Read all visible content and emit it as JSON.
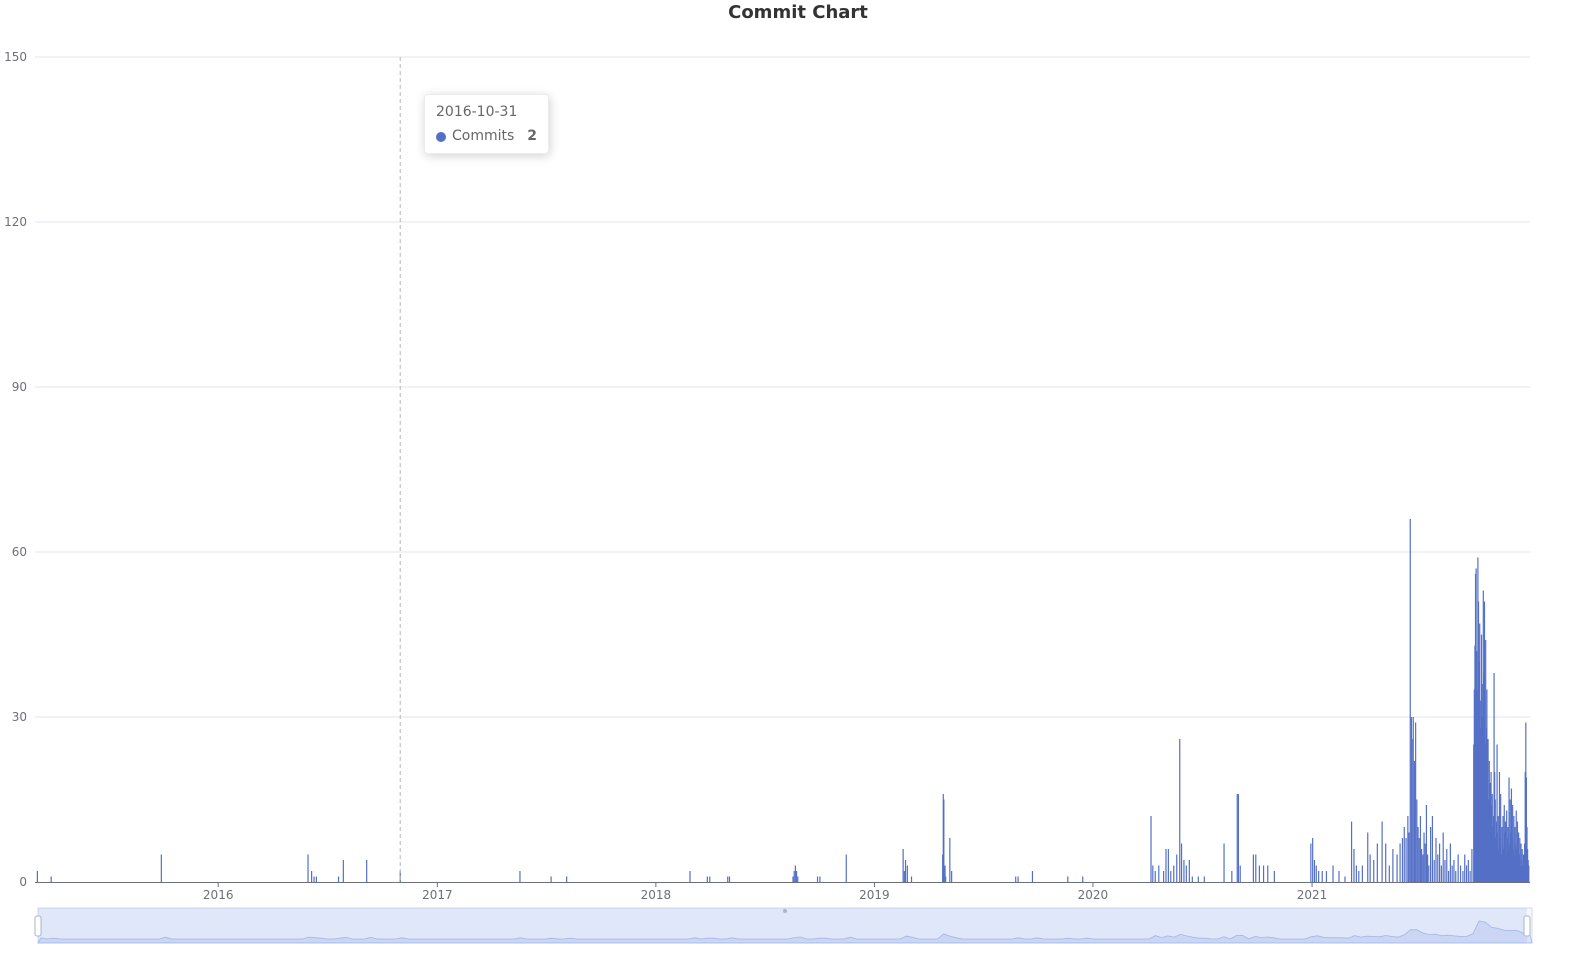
{
  "chart_data": {
    "type": "bar",
    "title": "Commit Chart",
    "xlabel": "",
    "ylabel": "",
    "ylim": [
      0,
      150
    ],
    "yticks": [
      0,
      30,
      60,
      90,
      120,
      150
    ],
    "xlim": [
      "2015-03-01",
      "2021-12-31"
    ],
    "xticks": [
      "2016",
      "2017",
      "2018",
      "2019",
      "2020",
      "2021"
    ],
    "grid": true,
    "color": "#5470c6",
    "series": [
      {
        "name": "Commits",
        "points": [
          [
            "2015-03-05",
            2
          ],
          [
            "2015-03-28",
            1
          ],
          [
            "2015-09-28",
            5
          ],
          [
            "2016-05-30",
            5
          ],
          [
            "2016-06-05",
            2
          ],
          [
            "2016-06-09",
            1
          ],
          [
            "2016-06-13",
            1
          ],
          [
            "2016-07-20",
            1
          ],
          [
            "2016-07-28",
            4
          ],
          [
            "2016-09-05",
            4
          ],
          [
            "2016-10-31",
            2
          ],
          [
            "2017-05-19",
            2
          ],
          [
            "2017-07-10",
            1
          ],
          [
            "2017-08-05",
            1
          ],
          [
            "2018-02-27",
            2
          ],
          [
            "2018-03-28",
            1
          ],
          [
            "2018-04-01",
            1
          ],
          [
            "2018-05-01",
            1
          ],
          [
            "2018-05-04",
            1
          ],
          [
            "2018-08-18",
            1
          ],
          [
            "2018-08-20",
            2
          ],
          [
            "2018-08-22",
            3
          ],
          [
            "2018-08-24",
            2
          ],
          [
            "2018-08-26",
            1
          ],
          [
            "2018-09-28",
            1
          ],
          [
            "2018-10-02",
            1
          ],
          [
            "2018-11-15",
            5
          ],
          [
            "2019-02-18",
            6
          ],
          [
            "2019-02-20",
            2
          ],
          [
            "2019-02-22",
            4
          ],
          [
            "2019-02-25",
            3
          ],
          [
            "2019-03-04",
            1
          ],
          [
            "2019-04-25",
            5
          ],
          [
            "2019-04-26",
            16
          ],
          [
            "2019-04-27",
            15
          ],
          [
            "2019-04-29",
            3
          ],
          [
            "2019-04-30",
            1
          ],
          [
            "2019-05-07",
            8
          ],
          [
            "2019-05-10",
            2
          ],
          [
            "2019-08-25",
            1
          ],
          [
            "2019-08-29",
            1
          ],
          [
            "2019-09-22",
            2
          ],
          [
            "2019-11-20",
            1
          ],
          [
            "2019-12-15",
            1
          ],
          [
            "2020-04-07",
            12
          ],
          [
            "2020-04-10",
            3
          ],
          [
            "2020-04-14",
            2
          ],
          [
            "2020-04-20",
            3
          ],
          [
            "2020-04-28",
            2
          ],
          [
            "2020-05-02",
            6
          ],
          [
            "2020-05-06",
            6
          ],
          [
            "2020-05-10",
            2
          ],
          [
            "2020-05-15",
            3
          ],
          [
            "2020-05-20",
            5
          ],
          [
            "2020-05-25",
            26
          ],
          [
            "2020-05-28",
            7
          ],
          [
            "2020-06-01",
            4
          ],
          [
            "2020-06-05",
            3
          ],
          [
            "2020-06-10",
            4
          ],
          [
            "2020-06-15",
            1
          ],
          [
            "2020-06-25",
            1
          ],
          [
            "2020-07-05",
            1
          ],
          [
            "2020-08-07",
            7
          ],
          [
            "2020-08-20",
            2
          ],
          [
            "2020-08-29",
            16
          ],
          [
            "2020-08-31",
            16
          ],
          [
            "2020-09-03",
            3
          ],
          [
            "2020-09-25",
            5
          ],
          [
            "2020-09-29",
            5
          ],
          [
            "2020-10-05",
            3
          ],
          [
            "2020-10-12",
            3
          ],
          [
            "2020-10-19",
            3
          ],
          [
            "2020-10-30",
            2
          ],
          [
            "2020-12-30",
            7
          ],
          [
            "2021-01-02",
            8
          ],
          [
            "2021-01-05",
            4
          ],
          [
            "2021-01-08",
            3
          ],
          [
            "2021-01-12",
            2
          ],
          [
            "2021-01-18",
            2
          ],
          [
            "2021-01-25",
            2
          ],
          [
            "2021-02-05",
            3
          ],
          [
            "2021-02-15",
            2
          ],
          [
            "2021-02-25",
            1
          ],
          [
            "2021-03-08",
            11
          ],
          [
            "2021-03-12",
            6
          ],
          [
            "2021-03-16",
            3
          ],
          [
            "2021-03-20",
            2
          ],
          [
            "2021-03-26",
            3
          ],
          [
            "2021-04-04",
            9
          ],
          [
            "2021-04-08",
            5
          ],
          [
            "2021-04-14",
            4
          ],
          [
            "2021-04-20",
            7
          ],
          [
            "2021-04-28",
            11
          ],
          [
            "2021-05-04",
            7
          ],
          [
            "2021-05-10",
            3
          ],
          [
            "2021-05-16",
            6
          ],
          [
            "2021-05-23",
            5
          ],
          [
            "2021-05-28",
            7
          ],
          [
            "2021-06-01",
            8
          ],
          [
            "2021-06-04",
            10
          ],
          [
            "2021-06-07",
            8
          ],
          [
            "2021-06-10",
            12
          ],
          [
            "2021-06-12",
            9
          ],
          [
            "2021-06-14",
            66
          ],
          [
            "2021-06-16",
            30
          ],
          [
            "2021-06-17",
            26
          ],
          [
            "2021-06-19",
            30
          ],
          [
            "2021-06-21",
            22
          ],
          [
            "2021-06-23",
            29
          ],
          [
            "2021-06-25",
            15
          ],
          [
            "2021-06-27",
            10
          ],
          [
            "2021-06-29",
            8
          ],
          [
            "2021-07-01",
            12
          ],
          [
            "2021-07-03",
            6
          ],
          [
            "2021-07-05",
            5
          ],
          [
            "2021-07-07",
            9
          ],
          [
            "2021-07-09",
            7
          ],
          [
            "2021-07-11",
            14
          ],
          [
            "2021-07-13",
            5
          ],
          [
            "2021-07-15",
            3
          ],
          [
            "2021-07-18",
            10
          ],
          [
            "2021-07-21",
            12
          ],
          [
            "2021-07-24",
            4
          ],
          [
            "2021-07-27",
            8
          ],
          [
            "2021-07-30",
            5
          ],
          [
            "2021-08-02",
            7
          ],
          [
            "2021-08-05",
            3
          ],
          [
            "2021-08-08",
            9
          ],
          [
            "2021-08-11",
            4
          ],
          [
            "2021-08-14",
            6
          ],
          [
            "2021-08-17",
            2
          ],
          [
            "2021-08-20",
            7
          ],
          [
            "2021-08-23",
            3
          ],
          [
            "2021-08-26",
            4
          ],
          [
            "2021-08-29",
            2
          ],
          [
            "2021-09-02",
            5
          ],
          [
            "2021-09-06",
            3
          ],
          [
            "2021-09-10",
            2
          ],
          [
            "2021-09-13",
            5
          ],
          [
            "2021-09-16",
            3
          ],
          [
            "2021-09-19",
            4
          ],
          [
            "2021-09-22",
            2
          ],
          [
            "2021-09-25",
            6
          ],
          [
            "2021-09-28",
            25
          ],
          [
            "2021-09-29",
            35
          ],
          [
            "2021-09-30",
            43
          ],
          [
            "2021-10-01",
            56
          ],
          [
            "2021-10-02",
            57
          ],
          [
            "2021-10-03",
            42
          ],
          [
            "2021-10-04",
            35
          ],
          [
            "2021-10-05",
            59
          ],
          [
            "2021-10-06",
            51
          ],
          [
            "2021-10-07",
            40
          ],
          [
            "2021-10-08",
            47
          ],
          [
            "2021-10-09",
            33
          ],
          [
            "2021-10-10",
            28
          ],
          [
            "2021-10-11",
            45
          ],
          [
            "2021-10-12",
            30
          ],
          [
            "2021-10-13",
            36
          ],
          [
            "2021-10-14",
            53
          ],
          [
            "2021-10-15",
            38
          ],
          [
            "2021-10-16",
            51
          ],
          [
            "2021-10-17",
            25
          ],
          [
            "2021-10-18",
            44
          ],
          [
            "2021-10-19",
            28
          ],
          [
            "2021-10-20",
            35
          ],
          [
            "2021-10-21",
            20
          ],
          [
            "2021-10-22",
            26
          ],
          [
            "2021-10-23",
            15
          ],
          [
            "2021-10-24",
            22
          ],
          [
            "2021-10-25",
            18
          ],
          [
            "2021-10-26",
            12
          ],
          [
            "2021-10-27",
            20
          ],
          [
            "2021-10-28",
            14
          ],
          [
            "2021-10-29",
            16
          ],
          [
            "2021-10-30",
            10
          ],
          [
            "2021-10-31",
            12
          ],
          [
            "2021-11-01",
            38
          ],
          [
            "2021-11-02",
            20
          ],
          [
            "2021-11-03",
            15
          ],
          [
            "2021-11-04",
            8
          ],
          [
            "2021-11-05",
            11
          ],
          [
            "2021-11-06",
            25
          ],
          [
            "2021-11-07",
            9
          ],
          [
            "2021-11-08",
            12
          ],
          [
            "2021-11-09",
            6
          ],
          [
            "2021-11-10",
            20
          ],
          [
            "2021-11-11",
            8
          ],
          [
            "2021-11-12",
            16
          ],
          [
            "2021-11-13",
            5
          ],
          [
            "2021-11-14",
            10
          ],
          [
            "2021-11-15",
            7
          ],
          [
            "2021-11-16",
            12
          ],
          [
            "2021-11-17",
            6
          ],
          [
            "2021-11-18",
            14
          ],
          [
            "2021-11-19",
            9
          ],
          [
            "2021-11-20",
            11
          ],
          [
            "2021-11-21",
            5
          ],
          [
            "2021-11-22",
            13
          ],
          [
            "2021-11-23",
            8
          ],
          [
            "2021-11-24",
            10
          ],
          [
            "2021-11-25",
            6
          ],
          [
            "2021-11-26",
            19
          ],
          [
            "2021-11-27",
            7
          ],
          [
            "2021-11-28",
            15
          ],
          [
            "2021-11-29",
            9
          ],
          [
            "2021-11-30",
            17
          ],
          [
            "2021-12-01",
            8
          ],
          [
            "2021-12-02",
            14
          ],
          [
            "2021-12-03",
            6
          ],
          [
            "2021-12-04",
            12
          ],
          [
            "2021-12-05",
            5
          ],
          [
            "2021-12-06",
            10
          ],
          [
            "2021-12-07",
            7
          ],
          [
            "2021-12-08",
            13
          ],
          [
            "2021-12-09",
            6
          ],
          [
            "2021-12-10",
            11
          ],
          [
            "2021-12-11",
            4
          ],
          [
            "2021-12-12",
            9
          ],
          [
            "2021-12-13",
            5
          ],
          [
            "2021-12-14",
            8
          ],
          [
            "2021-12-15",
            3
          ],
          [
            "2021-12-16",
            7
          ],
          [
            "2021-12-17",
            4
          ],
          [
            "2021-12-18",
            6
          ],
          [
            "2021-12-19",
            3
          ],
          [
            "2021-12-20",
            5
          ],
          [
            "2021-12-21",
            2
          ],
          [
            "2021-12-22",
            7
          ],
          [
            "2021-12-23",
            20
          ],
          [
            "2021-12-24",
            29
          ],
          [
            "2021-12-25",
            19
          ],
          [
            "2021-12-26",
            10
          ],
          [
            "2021-12-27",
            6
          ],
          [
            "2021-12-28",
            4
          ],
          [
            "2021-12-29",
            3
          ]
        ]
      }
    ],
    "tooltip": {
      "date": "2016-10-31",
      "series": "Commits",
      "value": "2"
    },
    "data_zoom": {
      "start_percent": 0,
      "end_percent": 100
    }
  }
}
